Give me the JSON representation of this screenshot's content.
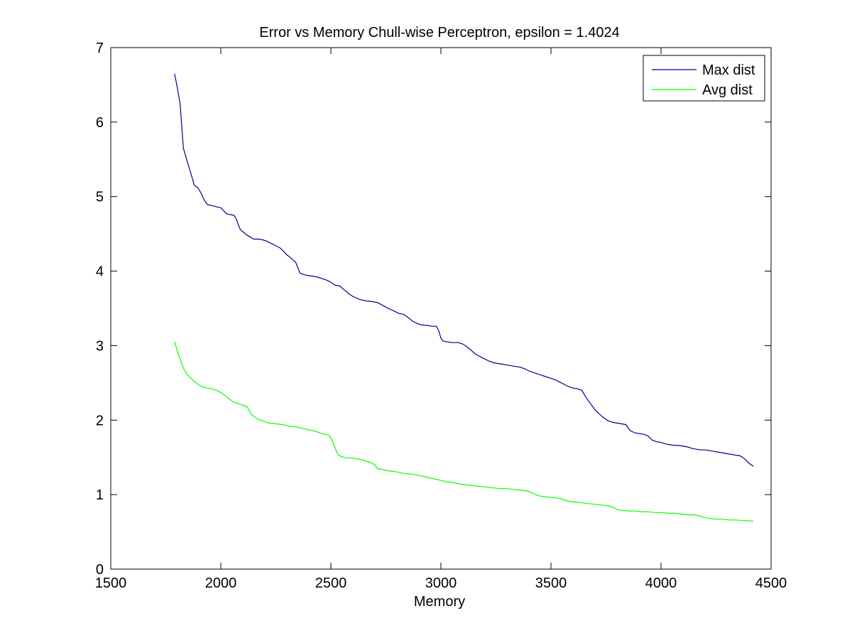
{
  "figure": {
    "background": "#ffffff"
  },
  "chart_data": {
    "type": "line",
    "title": "Error vs Memory Chull-wise Perceptron, epsilon = 1.4024",
    "xlabel": "Memory",
    "ylabel": "",
    "xlim": [
      1500,
      4500
    ],
    "ylim": [
      0,
      7
    ],
    "xticks": [
      1500,
      2000,
      2500,
      3000,
      3500,
      4000,
      4500
    ],
    "yticks": [
      0,
      1,
      2,
      3,
      4,
      5,
      6,
      7
    ],
    "grid": false,
    "legend_position": "top-right",
    "series": [
      {
        "name": "Max dist",
        "color": "#00008b",
        "x": [
          1790,
          1800,
          1815,
          1830,
          1845,
          1860,
          1880,
          1895,
          1910,
          1925,
          1940,
          1960,
          1985,
          2000,
          2010,
          2025,
          2040,
          2060,
          2070,
          2080,
          2090,
          2100,
          2120,
          2150,
          2170,
          2190,
          2210,
          2230,
          2250,
          2270,
          2280,
          2300,
          2320,
          2340,
          2360,
          2380,
          2400,
          2420,
          2440,
          2460,
          2480,
          2500,
          2520,
          2540,
          2560,
          2580,
          2600,
          2630,
          2660,
          2690,
          2710,
          2730,
          2760,
          2790,
          2810,
          2830,
          2850,
          2870,
          2890,
          2910,
          2940,
          2960,
          2980,
          2990,
          3000,
          3010,
          3030,
          3050,
          3080,
          3100,
          3120,
          3140,
          3160,
          3180,
          3200,
          3220,
          3240,
          3260,
          3280,
          3300,
          3320,
          3340,
          3360,
          3380,
          3400,
          3420,
          3440,
          3460,
          3480,
          3500,
          3520,
          3540,
          3560,
          3580,
          3600,
          3620,
          3640,
          3660,
          3680,
          3700,
          3720,
          3740,
          3760,
          3780,
          3800,
          3820,
          3840,
          3860,
          3880,
          3900,
          3920,
          3940,
          3960,
          3980,
          4000,
          4020,
          4040,
          4060,
          4080,
          4100,
          4120,
          4140,
          4160,
          4180,
          4200,
          4220,
          4240,
          4260,
          4280,
          4300,
          4320,
          4340,
          4360,
          4380,
          4400,
          4420
        ],
        "y": [
          6.65,
          6.5,
          6.25,
          5.65,
          5.5,
          5.35,
          5.15,
          5.12,
          5.05,
          4.95,
          4.89,
          4.88,
          4.86,
          4.85,
          4.82,
          4.77,
          4.76,
          4.75,
          4.7,
          4.62,
          4.55,
          4.53,
          4.48,
          4.43,
          4.43,
          4.42,
          4.4,
          4.37,
          4.34,
          4.31,
          4.28,
          4.22,
          4.17,
          4.12,
          3.97,
          3.95,
          3.94,
          3.93,
          3.92,
          3.9,
          3.88,
          3.85,
          3.81,
          3.8,
          3.75,
          3.7,
          3.66,
          3.62,
          3.6,
          3.59,
          3.58,
          3.55,
          3.5,
          3.46,
          3.43,
          3.42,
          3.38,
          3.33,
          3.3,
          3.28,
          3.27,
          3.26,
          3.26,
          3.2,
          3.1,
          3.06,
          3.05,
          3.04,
          3.04,
          3.02,
          2.98,
          2.93,
          2.88,
          2.85,
          2.82,
          2.79,
          2.77,
          2.76,
          2.75,
          2.74,
          2.73,
          2.72,
          2.71,
          2.69,
          2.66,
          2.64,
          2.62,
          2.6,
          2.58,
          2.56,
          2.54,
          2.51,
          2.48,
          2.45,
          2.43,
          2.42,
          2.4,
          2.3,
          2.22,
          2.14,
          2.08,
          2.03,
          1.99,
          1.97,
          1.96,
          1.95,
          1.94,
          1.86,
          1.83,
          1.82,
          1.81,
          1.79,
          1.73,
          1.71,
          1.7,
          1.68,
          1.67,
          1.66,
          1.66,
          1.65,
          1.64,
          1.62,
          1.61,
          1.6,
          1.6,
          1.59,
          1.58,
          1.57,
          1.56,
          1.55,
          1.54,
          1.53,
          1.52,
          1.48,
          1.42,
          1.38
        ]
      },
      {
        "name": "Avg dist",
        "color": "#00ff00",
        "x": [
          1790,
          1800,
          1815,
          1830,
          1845,
          1860,
          1880,
          1900,
          1920,
          1940,
          1960,
          1980,
          2000,
          2020,
          2040,
          2060,
          2080,
          2100,
          2120,
          2140,
          2160,
          2170,
          2180,
          2200,
          2220,
          2250,
          2280,
          2310,
          2340,
          2370,
          2400,
          2430,
          2460,
          2490,
          2500,
          2510,
          2520,
          2530,
          2540,
          2560,
          2590,
          2620,
          2650,
          2680,
          2700,
          2710,
          2730,
          2760,
          2790,
          2820,
          2850,
          2880,
          2910,
          2940,
          2970,
          3000,
          3030,
          3060,
          3090,
          3120,
          3150,
          3180,
          3210,
          3240,
          3270,
          3300,
          3330,
          3360,
          3390,
          3410,
          3430,
          3450,
          3480,
          3510,
          3540,
          3560,
          3580,
          3610,
          3640,
          3670,
          3700,
          3730,
          3760,
          3790,
          3800,
          3820,
          3850,
          3880,
          3910,
          3940,
          3970,
          4000,
          4030,
          4060,
          4090,
          4120,
          4150,
          4180,
          4200,
          4220,
          4250,
          4280,
          4310,
          4340,
          4370,
          4400,
          4420
        ],
        "y": [
          3.05,
          2.95,
          2.82,
          2.7,
          2.62,
          2.57,
          2.52,
          2.47,
          2.44,
          2.43,
          2.42,
          2.4,
          2.37,
          2.33,
          2.28,
          2.24,
          2.22,
          2.2,
          2.18,
          2.07,
          2.03,
          2.01,
          2.0,
          1.98,
          1.96,
          1.95,
          1.94,
          1.92,
          1.91,
          1.89,
          1.87,
          1.85,
          1.82,
          1.8,
          1.76,
          1.7,
          1.62,
          1.55,
          1.52,
          1.5,
          1.49,
          1.48,
          1.46,
          1.43,
          1.4,
          1.35,
          1.34,
          1.32,
          1.31,
          1.29,
          1.28,
          1.27,
          1.25,
          1.23,
          1.21,
          1.19,
          1.17,
          1.16,
          1.14,
          1.13,
          1.12,
          1.11,
          1.1,
          1.09,
          1.08,
          1.08,
          1.07,
          1.06,
          1.05,
          1.03,
          1.0,
          0.98,
          0.97,
          0.96,
          0.95,
          0.93,
          0.91,
          0.9,
          0.89,
          0.88,
          0.87,
          0.86,
          0.85,
          0.82,
          0.8,
          0.79,
          0.78,
          0.78,
          0.77,
          0.77,
          0.76,
          0.76,
          0.75,
          0.75,
          0.74,
          0.73,
          0.73,
          0.71,
          0.69,
          0.68,
          0.67,
          0.67,
          0.66,
          0.66,
          0.65,
          0.65,
          0.64
        ]
      }
    ]
  }
}
